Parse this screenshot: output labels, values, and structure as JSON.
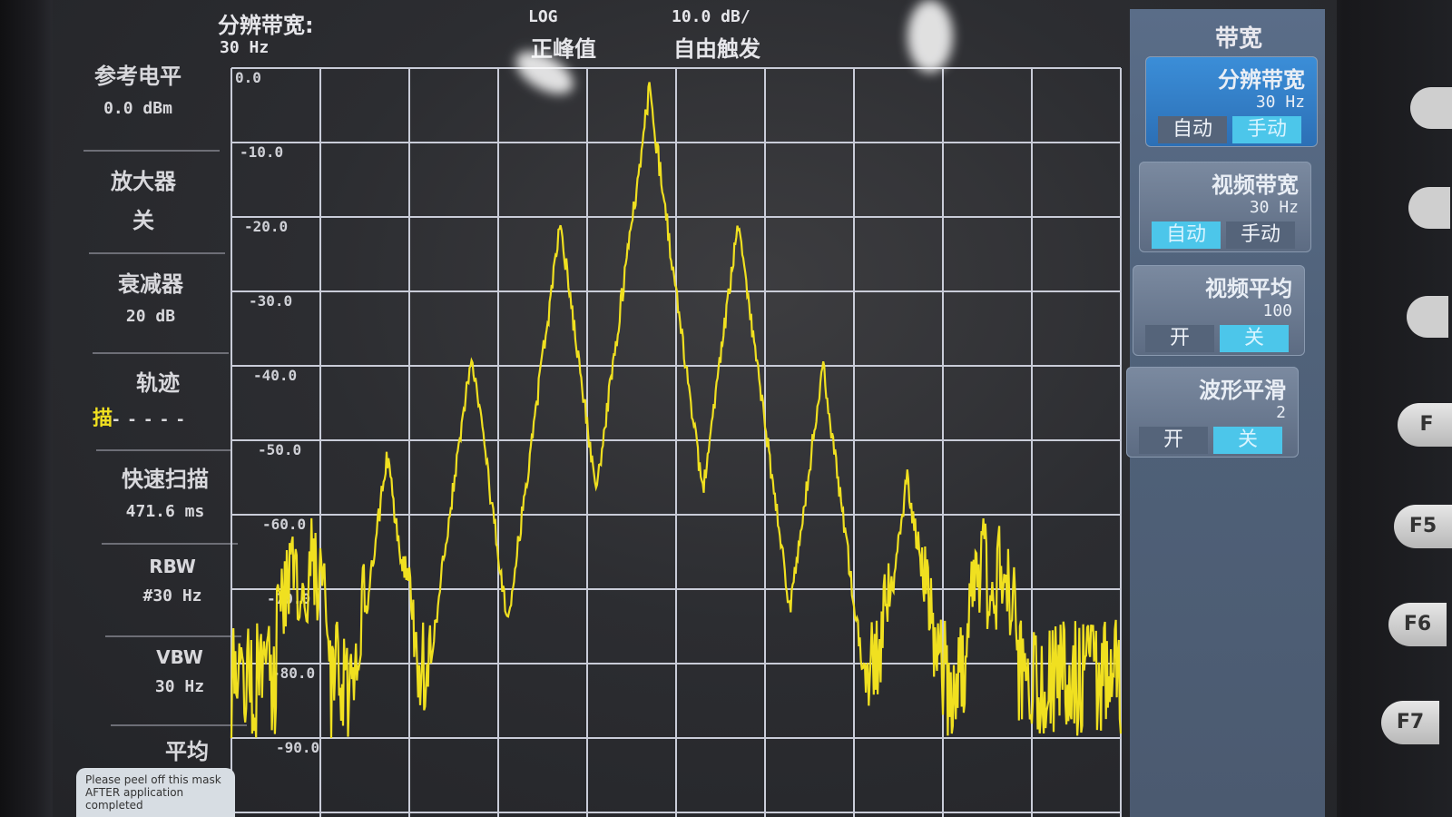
{
  "header": {
    "rbw_label": "分辨带宽:",
    "rbw_value": "30 Hz",
    "scale_type": "LOG",
    "detector": "正峰值",
    "scale_div": "10.0 dB/",
    "trigger": "自由触发"
  },
  "left_panel": {
    "ref_level_label": "参考电平",
    "ref_level_value": "0.0 dBm",
    "amplifier_label": "放大器",
    "amplifier_value": "关",
    "attenuator_label": "衰减器",
    "attenuator_value": "20 dB",
    "trace_label": "轨迹",
    "trace_mode": "描",
    "trace_dashes": "- - - - -",
    "fast_sweep_label": "快速扫描",
    "fast_sweep_value": "471.6 ms",
    "rbw_label": "RBW",
    "rbw_value": "#30 Hz",
    "vbw_label": "VBW",
    "vbw_value": "30 Hz",
    "avg_label": "平均"
  },
  "menu": {
    "title": "带宽",
    "keys": [
      {
        "title": "分辨带宽",
        "value": "30 Hz",
        "opt1": "自动",
        "opt2": "手动",
        "selected": 2
      },
      {
        "title": "视频带宽",
        "value": "30 Hz",
        "opt1": "自动",
        "opt2": "手动",
        "selected": 1
      },
      {
        "title": "视频平均",
        "value": "100",
        "opt1": "开",
        "opt2": "关",
        "selected": 2
      },
      {
        "title": "波形平滑",
        "value": "2",
        "opt1": "开",
        "opt2": "关",
        "selected": 2
      }
    ]
  },
  "softkeys": [
    "F",
    "F5",
    "F6",
    "F7"
  ],
  "sticker_text": "Please peel off this mask AFTER application completed",
  "chart_data": {
    "type": "line",
    "y_ticks": [
      "0.0",
      "-10.0",
      "-20.0",
      "-30.0",
      "-40.0",
      "-50.0",
      "-60.0",
      "-70.0",
      "-80.0",
      "-90.0"
    ],
    "ylim": [
      -100,
      0
    ],
    "grid": true,
    "series_color": "#f0e020",
    "peaks_db": [
      {
        "x": 0.08,
        "y": -70
      },
      {
        "x": 0.175,
        "y": -52
      },
      {
        "x": 0.27,
        "y": -38
      },
      {
        "x": 0.37,
        "y": -21
      },
      {
        "x": 0.47,
        "y": -3
      },
      {
        "x": 0.57,
        "y": -21
      },
      {
        "x": 0.665,
        "y": -40
      },
      {
        "x": 0.76,
        "y": -55
      },
      {
        "x": 0.855,
        "y": -70
      }
    ],
    "noise_floor_db": -82
  }
}
